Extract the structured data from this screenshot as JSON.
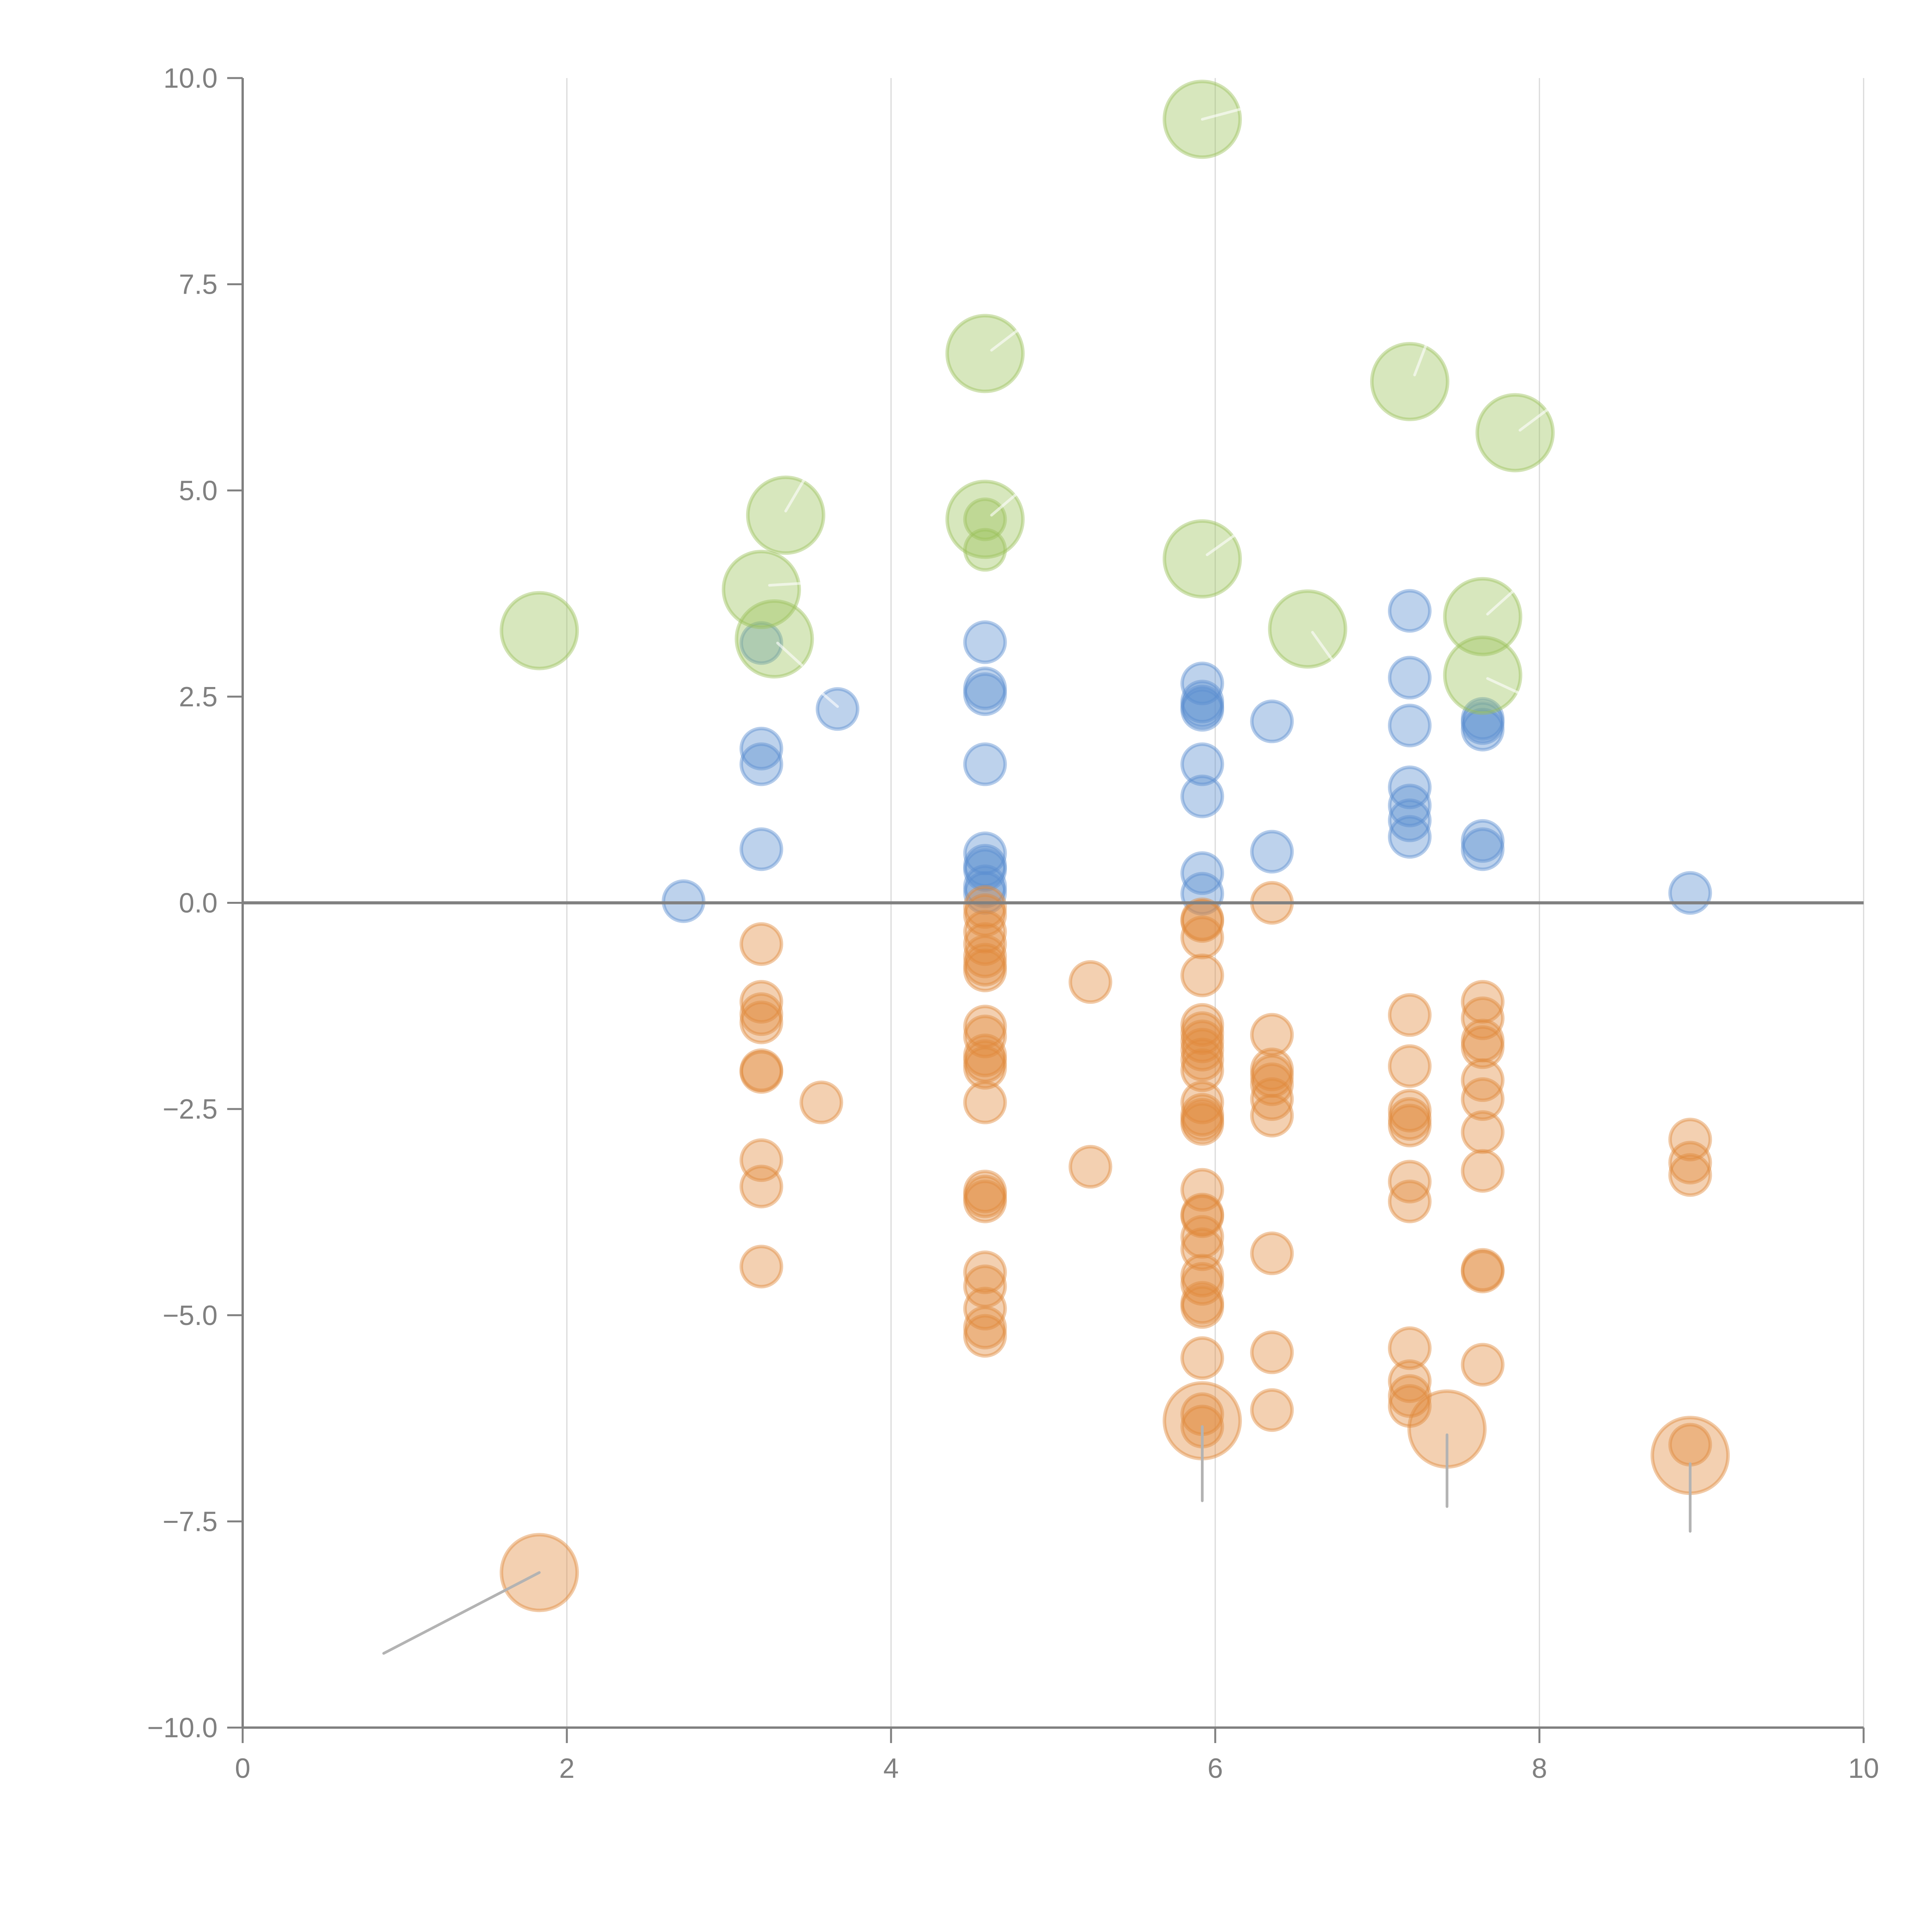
{
  "chart_data": {
    "type": "scatter",
    "title": "",
    "xlabel": "",
    "ylabel": "",
    "xlim": [
      0,
      10
    ],
    "ylim": [
      -10,
      10
    ],
    "grid": "vertical",
    "legend": "none",
    "x_ticks": [
      "0",
      "2",
      "4",
      "6",
      "8",
      "10"
    ],
    "x_tick_values": [
      0,
      2,
      4,
      6,
      8,
      10
    ],
    "y_ticks": [
      "10.0",
      "7.5",
      "5.0",
      "2.5",
      "0.0",
      "−2.5",
      "−5.0",
      "−7.5",
      "−10.0"
    ],
    "y_tick_values": [
      10,
      7.5,
      5,
      2.5,
      0,
      -2.5,
      -5,
      -7.5,
      -10
    ],
    "reference_line": {
      "axis": "y",
      "value": 0
    },
    "size_scale": {
      "small": 1,
      "large": 1.9
    },
    "colors": {
      "positive": "#5b8fd0",
      "negative": "#e08a3c",
      "highlight_positive": "#9bc25a",
      "grid": "#d9d9d9",
      "axis": "#808080",
      "leader_dark": "#b3b3b3",
      "leader_light": "#ffffff"
    },
    "series": [
      {
        "name": "positive",
        "color": "#5b8fd0",
        "size": "small",
        "points": [
          [
            2.72,
            0.02
          ],
          [
            3.2,
            3.15
          ],
          [
            3.2,
            1.87
          ],
          [
            3.2,
            1.68
          ],
          [
            3.2,
            0.65
          ],
          [
            3.67,
            2.35
          ],
          [
            4.58,
            3.16
          ],
          [
            4.58,
            2.6
          ],
          [
            4.58,
            2.53
          ],
          [
            4.58,
            1.68
          ],
          [
            4.58,
            0.6
          ],
          [
            4.58,
            0.45
          ],
          [
            4.58,
            0.4
          ],
          [
            4.58,
            0.2
          ],
          [
            4.58,
            0.12
          ],
          [
            5.92,
            2.66
          ],
          [
            5.92,
            2.44
          ],
          [
            5.92,
            2.38
          ],
          [
            5.92,
            2.34
          ],
          [
            5.92,
            1.68
          ],
          [
            5.92,
            1.29
          ],
          [
            5.92,
            0.36
          ],
          [
            5.92,
            0.11
          ],
          [
            6.35,
            2.2
          ],
          [
            6.35,
            0.62
          ],
          [
            7.2,
            3.54
          ],
          [
            7.2,
            2.73
          ],
          [
            7.2,
            2.15
          ],
          [
            7.2,
            1.4
          ],
          [
            7.2,
            1.18
          ],
          [
            7.2,
            1.0
          ],
          [
            7.2,
            0.8
          ],
          [
            7.65,
            2.23
          ],
          [
            7.65,
            2.18
          ],
          [
            7.65,
            2.1
          ],
          [
            7.65,
            0.75
          ],
          [
            7.65,
            0.65
          ],
          [
            8.93,
            0.12
          ]
        ]
      },
      {
        "name": "negative",
        "color": "#e08a3c",
        "size": "small",
        "points": [
          [
            3.2,
            -0.5
          ],
          [
            3.2,
            -1.2
          ],
          [
            3.2,
            -1.35
          ],
          [
            3.2,
            -1.45
          ],
          [
            3.2,
            -2.03
          ],
          [
            3.2,
            -2.05
          ],
          [
            3.2,
            -3.12
          ],
          [
            3.2,
            -3.44
          ],
          [
            3.2,
            -4.41
          ],
          [
            3.57,
            -2.42
          ],
          [
            4.58,
            -0.05
          ],
          [
            4.58,
            -0.15
          ],
          [
            4.58,
            -0.35
          ],
          [
            4.58,
            -0.5
          ],
          [
            4.58,
            -0.65
          ],
          [
            4.58,
            -0.75
          ],
          [
            4.58,
            -0.82
          ],
          [
            4.58,
            -1.5
          ],
          [
            4.58,
            -1.62
          ],
          [
            4.58,
            -1.85
          ],
          [
            4.58,
            -1.92
          ],
          [
            4.58,
            -2.0
          ],
          [
            4.58,
            -2.42
          ],
          [
            4.58,
            -3.5
          ],
          [
            4.58,
            -3.56
          ],
          [
            4.58,
            -3.62
          ],
          [
            4.58,
            -4.48
          ],
          [
            4.58,
            -4.65
          ],
          [
            4.58,
            -4.92
          ],
          [
            4.58,
            -5.15
          ],
          [
            4.58,
            -5.25
          ],
          [
            5.23,
            -0.96
          ],
          [
            5.23,
            -3.2
          ],
          [
            5.92,
            -0.2
          ],
          [
            5.92,
            -0.22
          ],
          [
            5.92,
            -0.42
          ],
          [
            5.92,
            -0.88
          ],
          [
            5.92,
            -1.48
          ],
          [
            5.92,
            -1.58
          ],
          [
            5.92,
            -1.68
          ],
          [
            5.92,
            -1.78
          ],
          [
            5.92,
            -1.9
          ],
          [
            5.92,
            -2.03
          ],
          [
            5.92,
            -2.42
          ],
          [
            5.92,
            -2.57
          ],
          [
            5.92,
            -2.63
          ],
          [
            5.92,
            -2.68
          ],
          [
            5.92,
            -3.48
          ],
          [
            5.92,
            -3.78
          ],
          [
            5.92,
            -3.8
          ],
          [
            5.92,
            -4.05
          ],
          [
            5.92,
            -4.2
          ],
          [
            5.92,
            -4.52
          ],
          [
            5.92,
            -4.62
          ],
          [
            5.92,
            -4.85
          ],
          [
            5.92,
            -4.9
          ],
          [
            5.92,
            -5.52
          ],
          [
            5.92,
            -6.2
          ],
          [
            5.92,
            -6.35
          ],
          [
            6.35,
            0.0
          ],
          [
            6.35,
            -1.6
          ],
          [
            6.35,
            -2.02
          ],
          [
            6.35,
            -2.1
          ],
          [
            6.35,
            -2.2
          ],
          [
            6.35,
            -2.38
          ],
          [
            6.35,
            -2.58
          ],
          [
            6.35,
            -4.25
          ],
          [
            6.35,
            -5.45
          ],
          [
            6.35,
            -6.15
          ],
          [
            7.2,
            -1.36
          ],
          [
            7.2,
            -1.98
          ],
          [
            7.2,
            -2.52
          ],
          [
            7.2,
            -2.62
          ],
          [
            7.2,
            -2.7
          ],
          [
            7.2,
            -3.38
          ],
          [
            7.2,
            -3.62
          ],
          [
            7.2,
            -5.4
          ],
          [
            7.2,
            -5.8
          ],
          [
            7.2,
            -5.98
          ],
          [
            7.2,
            -6.1
          ],
          [
            7.65,
            -1.2
          ],
          [
            7.65,
            -1.4
          ],
          [
            7.65,
            -1.67
          ],
          [
            7.65,
            -1.75
          ],
          [
            7.65,
            -2.15
          ],
          [
            7.65,
            -2.38
          ],
          [
            7.65,
            -2.78
          ],
          [
            7.65,
            -3.25
          ],
          [
            7.65,
            -4.45
          ],
          [
            7.65,
            -4.47
          ],
          [
            7.65,
            -5.6
          ],
          [
            8.93,
            -2.87
          ],
          [
            8.93,
            -3.15
          ],
          [
            8.93,
            -3.3
          ],
          [
            8.93,
            -6.57
          ]
        ]
      },
      {
        "name": "negative-large",
        "color": "#e08a3c",
        "size": "large",
        "points": [
          [
            1.83,
            -8.12
          ],
          [
            5.92,
            -6.28
          ],
          [
            7.43,
            -6.38
          ],
          [
            8.93,
            -6.7
          ]
        ]
      },
      {
        "name": "highlight-positive",
        "color": "#9bc25a",
        "size": "large",
        "points": [
          [
            1.83,
            3.3
          ],
          [
            3.2,
            3.8
          ],
          [
            3.28,
            3.2
          ],
          [
            3.35,
            4.7
          ],
          [
            4.58,
            6.66
          ],
          [
            4.58,
            4.65
          ],
          [
            5.92,
            9.5
          ],
          [
            5.92,
            4.17
          ],
          [
            6.57,
            3.32
          ],
          [
            7.2,
            6.32
          ],
          [
            7.65,
            3.47
          ],
          [
            7.65,
            2.76
          ],
          [
            7.85,
            5.7
          ]
        ]
      },
      {
        "name": "highlight-positive-small",
        "color": "#9bc25a",
        "size": "small",
        "points": [
          [
            4.58,
            4.65
          ],
          [
            4.58,
            4.28
          ]
        ]
      }
    ],
    "leaders": [
      {
        "from": [
          1.83,
          -8.12
        ],
        "to": [
          0.87,
          -9.1
        ],
        "tone": "dark"
      },
      {
        "from": [
          5.92,
          -6.35
        ],
        "to": [
          5.92,
          -7.25
        ],
        "tone": "dark"
      },
      {
        "from": [
          7.43,
          -6.45
        ],
        "to": [
          7.43,
          -7.32
        ],
        "tone": "dark"
      },
      {
        "from": [
          8.93,
          -6.8
        ],
        "to": [
          8.93,
          -7.62
        ],
        "tone": "dark"
      },
      {
        "from": [
          5.92,
          9.5
        ],
        "to": [
          6.15,
          9.62
        ],
        "tone": "light"
      },
      {
        "from": [
          4.62,
          6.7
        ],
        "to": [
          4.8,
          6.97
        ],
        "tone": "light"
      },
      {
        "from": [
          7.23,
          6.4
        ],
        "to": [
          7.3,
          6.76
        ],
        "tone": "light"
      },
      {
        "from": [
          7.88,
          5.73
        ],
        "to": [
          8.05,
          5.98
        ],
        "tone": "light"
      },
      {
        "from": [
          3.35,
          4.75
        ],
        "to": [
          3.47,
          5.15
        ],
        "tone": "light"
      },
      {
        "from": [
          4.62,
          4.7
        ],
        "to": [
          4.8,
          5.0
        ],
        "tone": "light"
      },
      {
        "from": [
          5.95,
          4.22
        ],
        "to": [
          6.15,
          4.5
        ],
        "tone": "light"
      },
      {
        "from": [
          3.25,
          3.85
        ],
        "to": [
          3.5,
          3.88
        ],
        "tone": "light"
      },
      {
        "from": [
          3.3,
          3.15
        ],
        "to": [
          3.45,
          2.88
        ],
        "tone": "light"
      },
      {
        "from": [
          3.67,
          2.38
        ],
        "to": [
          3.54,
          2.6
        ],
        "tone": "light"
      },
      {
        "from": [
          6.6,
          3.28
        ],
        "to": [
          6.72,
          2.95
        ],
        "tone": "light"
      },
      {
        "from": [
          7.68,
          3.5
        ],
        "to": [
          7.85,
          3.8
        ],
        "tone": "light"
      },
      {
        "from": [
          7.68,
          2.72
        ],
        "to": [
          7.9,
          2.52
        ],
        "tone": "light"
      }
    ]
  }
}
